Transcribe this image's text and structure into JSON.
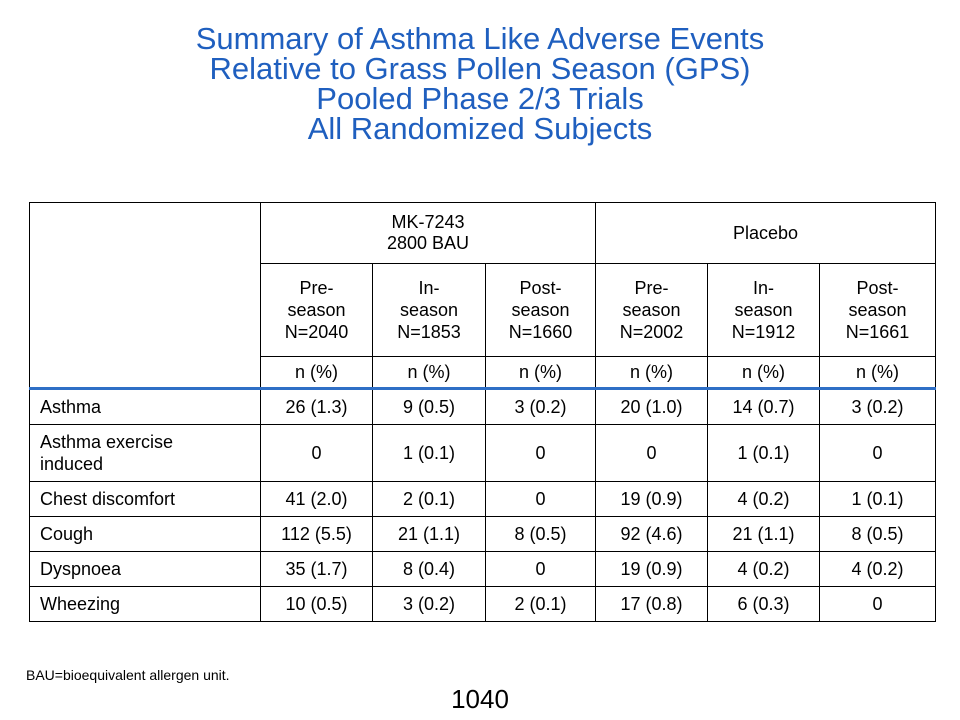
{
  "title": {
    "lines": [
      "Summary of Asthma Like Adverse Events",
      "Relative to Grass Pollen Season (GPS)",
      "Pooled Phase 2/3 Trials",
      "All Randomized Subjects"
    ]
  },
  "table": {
    "groups": [
      {
        "line1": "MK-7243",
        "line2": "2800 BAU"
      },
      {
        "line1": "",
        "line2": "Placebo"
      }
    ],
    "periods": [
      {
        "line1": "Pre-",
        "line2": "season",
        "line3": "N=2040"
      },
      {
        "line1": "In-",
        "line2": "season",
        "line3": "N=1853"
      },
      {
        "line1": "Post-",
        "line2": "season",
        "line3": "N=1660"
      },
      {
        "line1": "Pre-",
        "line2": "season",
        "line3": "N=2002"
      },
      {
        "line1": "In-",
        "line2": "season",
        "line3": "N=1912"
      },
      {
        "line1": "Post-",
        "line2": "season",
        "line3": "N=1661"
      }
    ],
    "unit_label": "n (%)",
    "rows": [
      {
        "label": "Asthma",
        "label2": "",
        "values": [
          "26 (1.3)",
          "9 (0.5)",
          "3 (0.2)",
          "20 (1.0)",
          "14 (0.7)",
          "3 (0.2)"
        ]
      },
      {
        "label": "Asthma exercise",
        "label2": "induced",
        "values": [
          "0",
          "1 (0.1)",
          "0",
          "0",
          "1 (0.1)",
          "0"
        ]
      },
      {
        "label": "Chest discomfort",
        "label2": "",
        "values": [
          "41 (2.0)",
          "2 (0.1)",
          "0",
          "19 (0.9)",
          "4 (0.2)",
          "1 (0.1)"
        ]
      },
      {
        "label": "Cough",
        "label2": "",
        "values": [
          "112 (5.5)",
          "21 (1.1)",
          "8 (0.5)",
          "92 (4.6)",
          "21 (1.1)",
          "8 (0.5)"
        ]
      },
      {
        "label": "Dyspnoea",
        "label2": "",
        "values": [
          "35 (1.7)",
          "8 (0.4)",
          "0",
          "19 (0.9)",
          "4 (0.2)",
          "4 (0.2)"
        ]
      },
      {
        "label": "Wheezing",
        "label2": "",
        "values": [
          "10 (0.5)",
          "3 (0.2)",
          "2 (0.1)",
          "17 (0.8)",
          "6 (0.3)",
          "0"
        ]
      }
    ]
  },
  "footnote": "BAU=bioequivalent allergen unit.",
  "slide_number": "1040",
  "colors": {
    "title": "#1f5fbf",
    "header_rule": "#2f6fc6"
  }
}
